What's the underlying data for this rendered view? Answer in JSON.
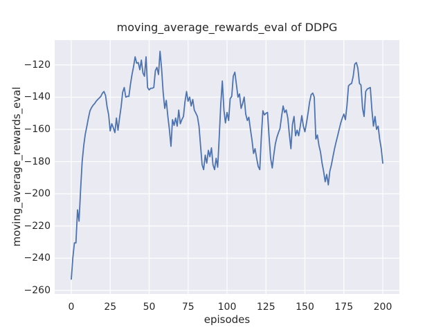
{
  "figure": {
    "title": "moving_average_rewards_eval of DDPG",
    "xlabel": "episodes",
    "ylabel": "moving_average_rewards_eval"
  },
  "chart_data": {
    "type": "line",
    "title": "moving_average_rewards_eval of DDPG",
    "xlabel": "episodes",
    "ylabel": "moving_average_rewards_eval",
    "x_ticks": [
      0,
      25,
      50,
      75,
      100,
      125,
      150,
      175,
      200
    ],
    "y_ticks": [
      -120,
      -140,
      -160,
      -180,
      -200,
      -220,
      -240,
      -260
    ],
    "xlim": [
      -10.66,
      210.66
    ],
    "ylim": [
      -262.2,
      -104.6
    ],
    "grid": true,
    "legend": false,
    "style": {
      "axes_background": "#eaeaf2",
      "grid_color": "#ffffff",
      "grid_width": 1.2,
      "line_color": "#4c72b0",
      "line_width": 1.8,
      "text_color": "#262626"
    },
    "series": [
      {
        "name": "moving_average_rewards_eval",
        "x_start": 0,
        "x_step": 1,
        "y": [
          -253,
          -240,
          -230.5,
          -230.5,
          -210,
          -217,
          -197,
          -180,
          -170,
          -163,
          -158,
          -153,
          -148.5,
          -146.5,
          -145,
          -144,
          -142.5,
          -141.5,
          -140.5,
          -139.5,
          -137.5,
          -136.5,
          -139,
          -146,
          -151,
          -161,
          -156.5,
          -159,
          -162,
          -153,
          -160.5,
          -153,
          -146,
          -137,
          -134,
          -140,
          -139.5,
          -139.5,
          -132,
          -126,
          -121,
          -115,
          -119,
          -118.5,
          -123,
          -117,
          -125,
          -127,
          -115,
          -134,
          -135.5,
          -134.5,
          -134.5,
          -134,
          -123.5,
          -121.5,
          -126,
          -111.5,
          -122.5,
          -137,
          -147,
          -142,
          -152,
          -160,
          -170.5,
          -154,
          -157.5,
          -153,
          -158,
          -148,
          -156.5,
          -154,
          -152,
          -143,
          -136.5,
          -142.5,
          -140,
          -145.5,
          -141.5,
          -148,
          -150,
          -152,
          -158,
          -170,
          -182,
          -185,
          -176,
          -181,
          -173,
          -177,
          -171.5,
          -182,
          -185,
          -178,
          -183.5,
          -165,
          -144,
          -130,
          -148,
          -156,
          -149.5,
          -154.5,
          -141,
          -139.5,
          -127,
          -124.5,
          -132,
          -140,
          -138,
          -147,
          -144,
          -140,
          -150.5,
          -154.5,
          -152.5,
          -160,
          -166.5,
          -175,
          -172,
          -178,
          -183,
          -185,
          -165,
          -148.5,
          -151,
          -150,
          -149.5,
          -165,
          -178,
          -184,
          -176,
          -169,
          -165,
          -162,
          -159.5,
          -152,
          -145.5,
          -149.5,
          -148,
          -153,
          -163,
          -172,
          -157,
          -152,
          -164,
          -160.5,
          -164,
          -158,
          -151.5,
          -158,
          -161.5,
          -156,
          -150,
          -143,
          -138.5,
          -137.5,
          -140,
          -166,
          -163.5,
          -170,
          -174,
          -181,
          -186,
          -192.5,
          -188,
          -194.5,
          -186,
          -182,
          -177,
          -172,
          -168,
          -164,
          -160,
          -156,
          -153,
          -150.5,
          -154,
          -145,
          -133,
          -132,
          -131.5,
          -127,
          -119.5,
          -118.5,
          -122,
          -131.5,
          -132.5,
          -147,
          -152,
          -136.5,
          -135,
          -134.5,
          -134,
          -148,
          -158,
          -152,
          -160,
          -158,
          -166,
          -172,
          -181
        ]
      }
    ]
  }
}
